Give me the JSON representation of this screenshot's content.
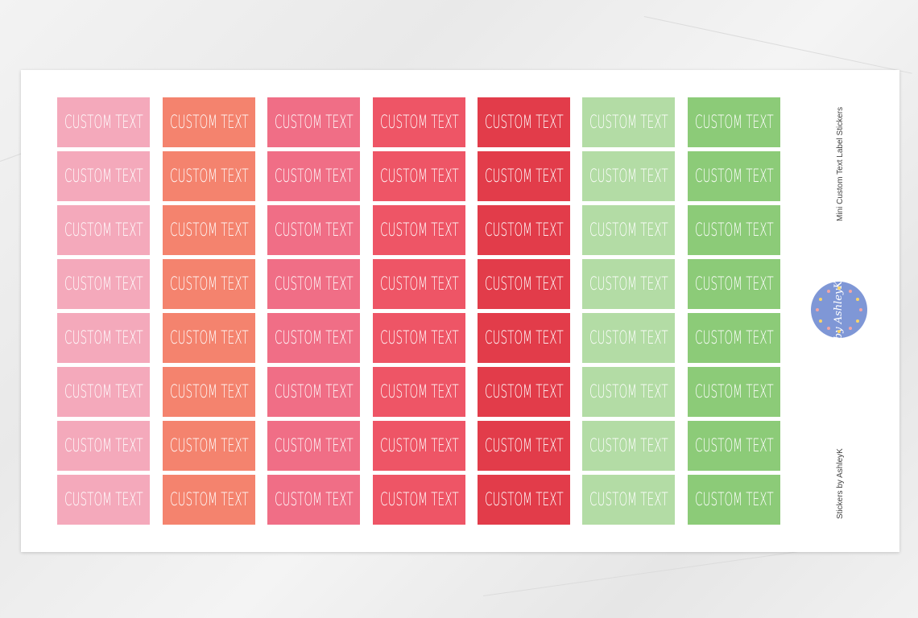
{
  "sheet": {
    "title": "Mini Custom Text Label Stickers",
    "credit": "Stickers by AshleyK",
    "logo_text": "by AshleyK",
    "logo_color": "#7f97d6"
  },
  "columns": [
    {
      "color": "#f4a9bb",
      "labels": [
        "CUSTOM TEXT",
        "CUSTOM TEXT",
        "CUSTOM TEXT",
        "CUSTOM TEXT",
        "CUSTOM TEXT",
        "CUSTOM TEXT",
        "CUSTOM TEXT",
        "CUSTOM TEXT"
      ]
    },
    {
      "color": "#f4836e",
      "labels": [
        "CUSTOM TEXT",
        "CUSTOM TEXT",
        "CUSTOM TEXT",
        "CUSTOM TEXT",
        "CUSTOM TEXT",
        "CUSTOM TEXT",
        "CUSTOM TEXT",
        "CUSTOM TEXT"
      ]
    },
    {
      "color": "#f06e86",
      "labels": [
        "CUSTOM TEXT",
        "CUSTOM TEXT",
        "CUSTOM TEXT",
        "CUSTOM TEXT",
        "CUSTOM TEXT",
        "CUSTOM TEXT",
        "CUSTOM TEXT",
        "CUSTOM TEXT"
      ]
    },
    {
      "color": "#ee5566",
      "labels": [
        "CUSTOM TEXT",
        "CUSTOM TEXT",
        "CUSTOM TEXT",
        "CUSTOM TEXT",
        "CUSTOM TEXT",
        "CUSTOM TEXT",
        "CUSTOM TEXT",
        "CUSTOM TEXT"
      ]
    },
    {
      "color": "#e23c4a",
      "labels": [
        "CUSTOM TEXT",
        "CUSTOM TEXT",
        "CUSTOM TEXT",
        "CUSTOM TEXT",
        "CUSTOM TEXT",
        "CUSTOM TEXT",
        "CUSTOM TEXT",
        "CUSTOM TEXT"
      ]
    },
    {
      "color": "#b3dca5",
      "labels": [
        "CUSTOM TEXT",
        "CUSTOM TEXT",
        "CUSTOM TEXT",
        "CUSTOM TEXT",
        "CUSTOM TEXT",
        "CUSTOM TEXT",
        "CUSTOM TEXT",
        "CUSTOM TEXT"
      ]
    },
    {
      "color": "#8ccb78",
      "labels": [
        "CUSTOM TEXT",
        "CUSTOM TEXT",
        "CUSTOM TEXT",
        "CUSTOM TEXT",
        "CUSTOM TEXT",
        "CUSTOM TEXT",
        "CUSTOM TEXT",
        "CUSTOM TEXT"
      ]
    }
  ]
}
